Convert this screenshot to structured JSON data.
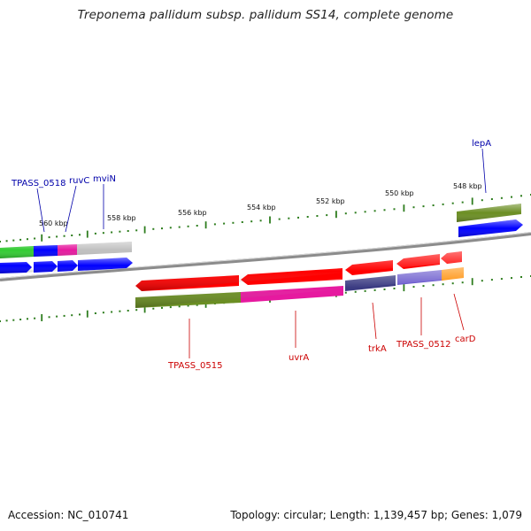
{
  "title": "Treponema pallidum subsp. pallidum SS14, complete genome",
  "footer": {
    "accession": "Accession: NC_010741",
    "summary": "Topology: circular; Length: 1,139,457 bp; Genes: 1,079"
  },
  "scale_labels": [
    "560 kbp",
    "558 kbp",
    "556 kbp",
    "554 kbp",
    "552 kbp",
    "550 kbp",
    "548 kbp"
  ],
  "genes_top": [
    {
      "label": "TPASS_0518",
      "color": "#0000aa"
    },
    {
      "label": "ruvC",
      "color": "#0000aa"
    },
    {
      "label": "mviN",
      "color": "#0000aa"
    },
    {
      "label": "lepA",
      "color": "#0000aa"
    }
  ],
  "genes_bottom": [
    {
      "label": "TPASS_0515",
      "color": "#cc0000"
    },
    {
      "label": "uvrA",
      "color": "#cc0000"
    },
    {
      "label": "trkA",
      "color": "#cc0000"
    },
    {
      "label": "TPASS_0512",
      "color": "#cc0000"
    },
    {
      "label": "carD",
      "color": "#cc0000"
    }
  ],
  "colors": {
    "backbone": "#8c8c8c",
    "tick": "#2e7d1e",
    "forward_gene": "#0000ff",
    "reverse_gene": "#ff0000",
    "cds_green": "#6b8e23",
    "cds_magenta": "#e6199f",
    "cds_navy": "#3b3b82",
    "cds_slate": "#6a5acd",
    "cds_orange": "#ff8c00",
    "cds_gray": "#c0c0c0",
    "cds_bright_green": "#33cc33"
  }
}
